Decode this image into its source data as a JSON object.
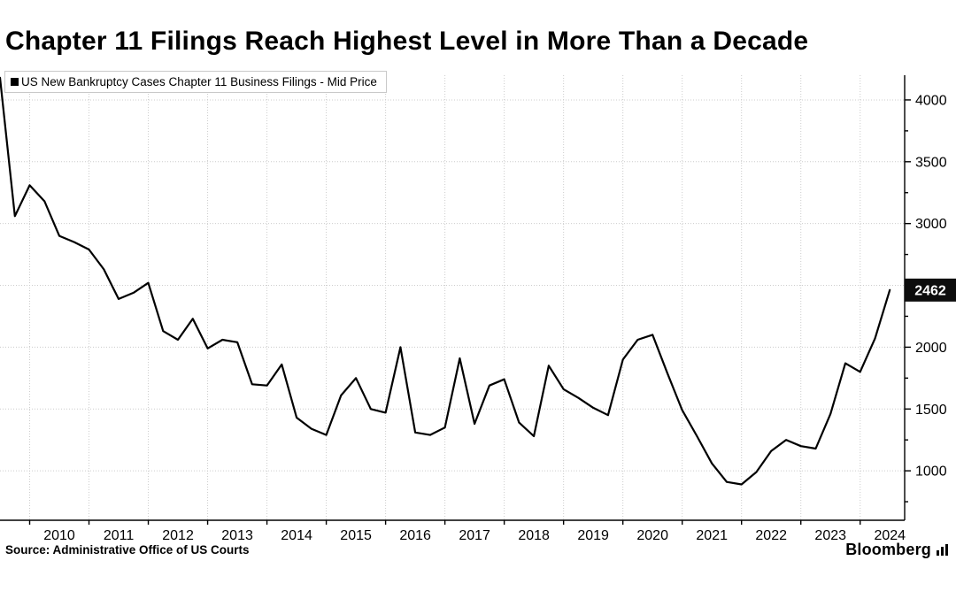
{
  "header": {
    "title": "Chapter 11 Filings Reach Highest Level in More Than a Decade"
  },
  "legend": {
    "swatch_color": "#000000",
    "label": "US New Bankruptcy Cases Chapter 11 Business Filings - Mid Price"
  },
  "last_value_label": "2462",
  "footer": {
    "source": "Source: Administrative Office of US Courts",
    "brand": "Bloomberg",
    "brand_icon": "bar-chart-logo-icon"
  },
  "chart_data": {
    "type": "line",
    "title": "Chapter 11 Filings Reach Highest Level in More Than a Decade",
    "xlabel": "",
    "ylabel": "",
    "grid": true,
    "legend_position": "top-left",
    "axis_side": "right",
    "line_color": "#000000",
    "grid_color": "#cccccc",
    "xlim": [
      2009.5,
      2024.75
    ],
    "ylim": [
      600,
      4200
    ],
    "y_ticks": [
      1000,
      1500,
      2000,
      2500,
      3000,
      3500,
      4000
    ],
    "y_minor_tick_step": 250,
    "x_tick_years": [
      2010,
      2011,
      2012,
      2013,
      2014,
      2015,
      2016,
      2017,
      2018,
      2019,
      2020,
      2021,
      2022,
      2023,
      2024
    ],
    "last_value": 2462,
    "series": [
      {
        "name": "US New Bankruptcy Cases Chapter 11 Business Filings - Mid Price",
        "color": "#000000",
        "x": [
          2009.5,
          2009.75,
          2010.0,
          2010.25,
          2010.5,
          2010.75,
          2011.0,
          2011.25,
          2011.5,
          2011.75,
          2012.0,
          2012.25,
          2012.5,
          2012.75,
          2013.0,
          2013.25,
          2013.5,
          2013.75,
          2014.0,
          2014.25,
          2014.5,
          2014.75,
          2015.0,
          2015.25,
          2015.5,
          2015.75,
          2016.0,
          2016.25,
          2016.5,
          2016.75,
          2017.0,
          2017.25,
          2017.5,
          2017.75,
          2018.0,
          2018.25,
          2018.5,
          2018.75,
          2019.0,
          2019.25,
          2019.5,
          2019.75,
          2020.0,
          2020.25,
          2020.5,
          2020.75,
          2021.0,
          2021.25,
          2021.5,
          2021.75,
          2022.0,
          2022.25,
          2022.5,
          2022.75,
          2023.0,
          2023.25,
          2023.5,
          2023.75,
          2024.0,
          2024.25,
          2024.5
        ],
        "values": [
          4180,
          3060,
          3310,
          3180,
          2900,
          2850,
          2790,
          2630,
          2390,
          2440,
          2520,
          2130,
          2060,
          2230,
          1990,
          2060,
          2040,
          1700,
          1690,
          1860,
          1430,
          1340,
          1290,
          1610,
          1750,
          1500,
          1470,
          2000,
          1310,
          1290,
          1350,
          1910,
          1380,
          1690,
          1740,
          1390,
          1280,
          1850,
          1660,
          1590,
          1510,
          1450,
          1900,
          2060,
          2100,
          1790,
          1490,
          1280,
          1060,
          910,
          890,
          990,
          1160,
          1250,
          1200,
          1180,
          1460,
          1870,
          1800,
          2070,
          2462
        ]
      }
    ]
  }
}
